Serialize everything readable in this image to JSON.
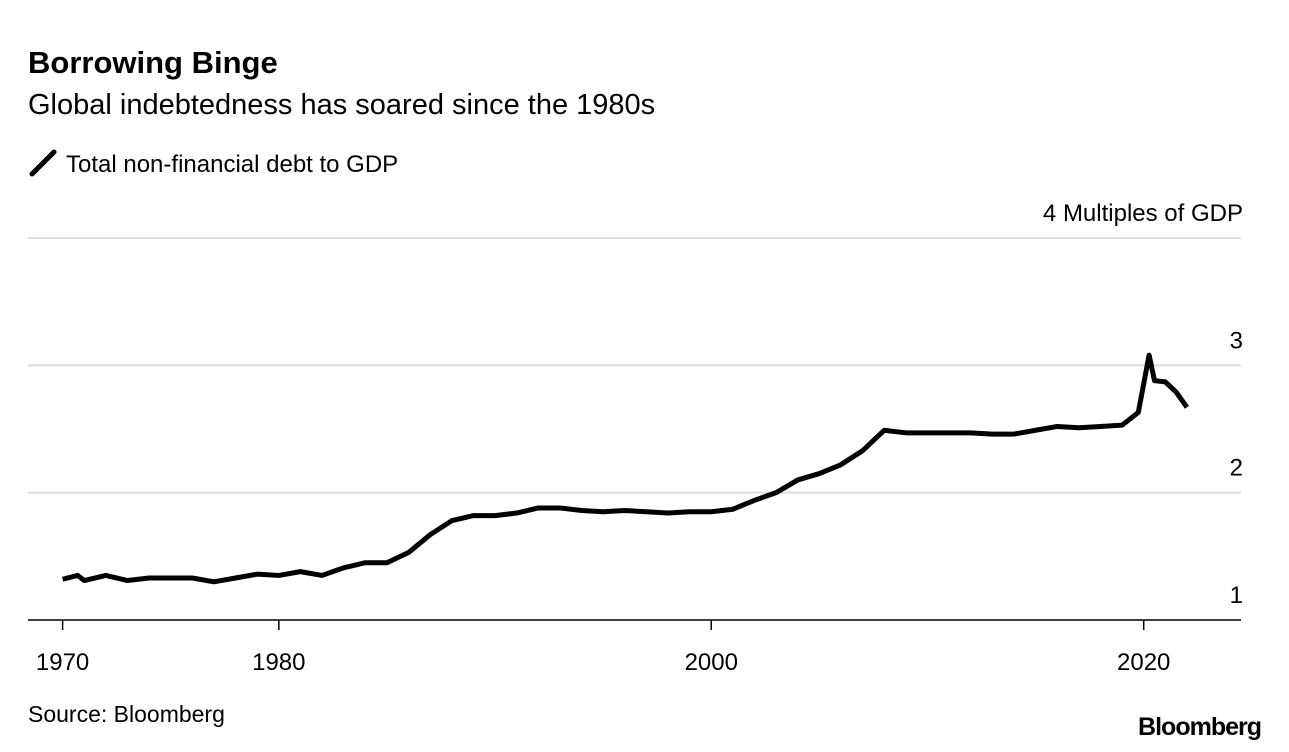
{
  "chart_data": {
    "type": "line",
    "title": "Borrowing Binge",
    "subtitle": "Global indebtedness has soared since the 1980s",
    "source": "Source: Bloomberg",
    "brand": "Bloomberg",
    "x": [
      1970,
      1970.7,
      1971,
      1972,
      1973,
      1974,
      1975,
      1976,
      1977,
      1978,
      1979,
      1980,
      1981,
      1982,
      1983,
      1984,
      1985,
      1986,
      1987,
      1988,
      1989,
      1990,
      1991,
      1992,
      1993,
      1994,
      1995,
      1996,
      1997,
      1998,
      1999,
      2000,
      2001,
      2002,
      2003,
      2004,
      2005,
      2006,
      2007,
      2008,
      2009,
      2010,
      2011,
      2012,
      2013,
      2014,
      2015,
      2016,
      2017,
      2018,
      2019,
      2019.75,
      2020.25,
      2020.5,
      2021,
      2021.5,
      2022
    ],
    "series": [
      {
        "name": "Total non-financial debt to GDP",
        "color": "#000000",
        "values": [
          1.32,
          1.35,
          1.31,
          1.35,
          1.31,
          1.33,
          1.33,
          1.33,
          1.3,
          1.33,
          1.36,
          1.35,
          1.38,
          1.35,
          1.41,
          1.45,
          1.45,
          1.53,
          1.67,
          1.78,
          1.82,
          1.82,
          1.84,
          1.88,
          1.88,
          1.86,
          1.85,
          1.86,
          1.85,
          1.84,
          1.85,
          1.85,
          1.87,
          1.94,
          2.0,
          2.1,
          2.15,
          2.22,
          2.33,
          2.49,
          2.47,
          2.47,
          2.47,
          2.47,
          2.46,
          2.46,
          2.49,
          2.52,
          2.51,
          2.52,
          2.53,
          2.63,
          3.08,
          2.88,
          2.87,
          2.79,
          2.67
        ]
      }
    ],
    "xlim": [
      1968.4,
      2024.5
    ],
    "xticks": [
      1970,
      1980,
      2000,
      2020
    ],
    "ylim": [
      1,
      4
    ],
    "yticks": [
      1,
      2,
      3,
      {
        "value": 4,
        "label": "4 Multiples of GDP"
      }
    ],
    "grid": true
  }
}
